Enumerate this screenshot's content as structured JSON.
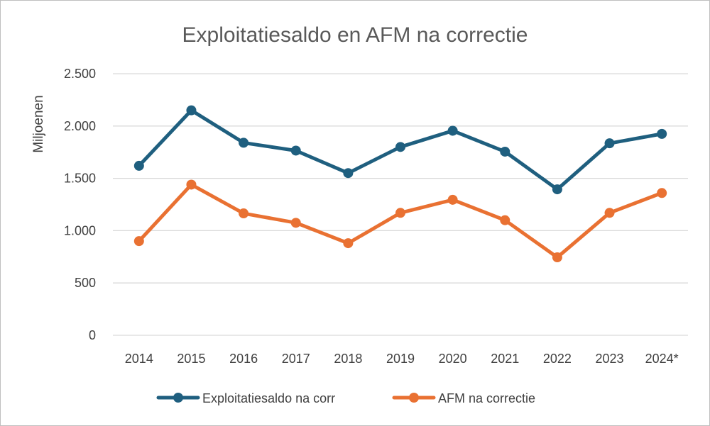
{
  "chart_data": {
    "type": "line",
    "title": "Exploitatiesaldo en AFM na correctie",
    "xlabel": "",
    "ylabel": "Miljoenen",
    "categories": [
      "2014",
      "2015",
      "2016",
      "2017",
      "2018",
      "2019",
      "2020",
      "2021",
      "2022",
      "2023",
      "2024*"
    ],
    "ylim": [
      0,
      2500
    ],
    "yticks": [
      0,
      500,
      1000,
      1500,
      2000,
      2500
    ],
    "ytick_labels": [
      "0",
      "500",
      "1.000",
      "1.500",
      "2.000",
      "2.500"
    ],
    "grid": true,
    "legend_position": "bottom",
    "series": [
      {
        "name": "Exploitatiesaldo na corr",
        "color": "#1f5f7f",
        "values": [
          1620,
          2150,
          1840,
          1765,
          1550,
          1800,
          1955,
          1755,
          1395,
          1835,
          1925
        ]
      },
      {
        "name": "AFM na correctie",
        "color": "#e97132",
        "values": [
          900,
          1440,
          1165,
          1075,
          880,
          1170,
          1295,
          1100,
          745,
          1170,
          1360
        ]
      }
    ]
  }
}
